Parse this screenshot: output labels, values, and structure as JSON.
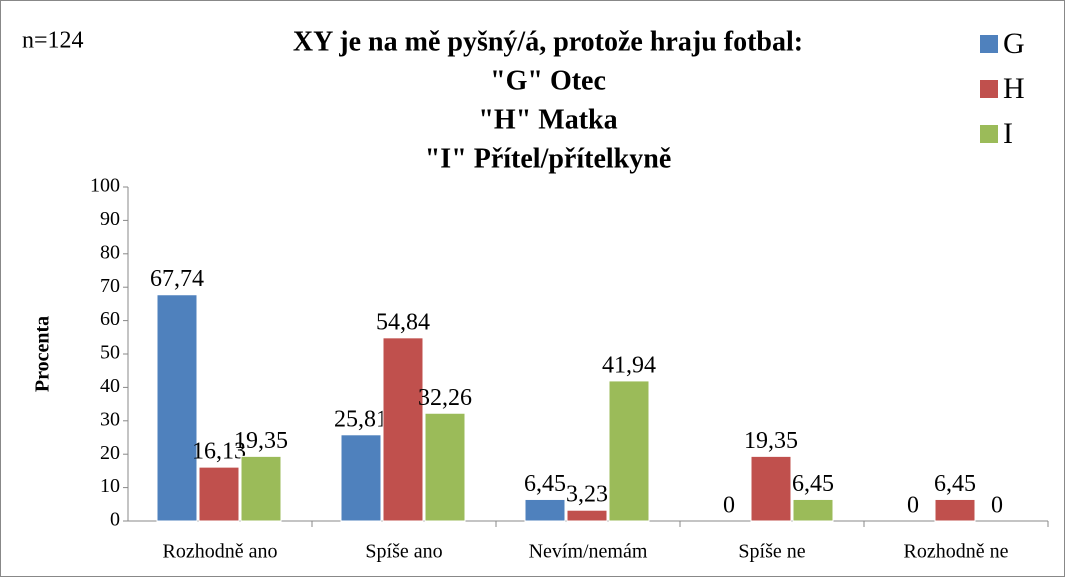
{
  "chart_data": {
    "type": "bar",
    "title": [
      "XY je na mě pyšný/á, protože hraju fotbal:",
      "\"G\" Otec",
      "\"H\" Matka",
      "\"I\" Přítel/přítelkyně"
    ],
    "annotation": "n=124",
    "y_label": "Procenta",
    "categories": [
      "Rozhodně ano",
      "Spíše ano",
      "Nevím/nemám",
      "Spíše ne",
      "Rozhodně ne"
    ],
    "series": [
      {
        "name": "G",
        "color": "#4f81bd",
        "values": [
          67.74,
          25.81,
          6.45,
          0,
          0
        ],
        "value_labels": [
          "67,74",
          "25,81",
          "6,45",
          "0",
          "0"
        ]
      },
      {
        "name": "H",
        "color": "#c0504d",
        "values": [
          16.13,
          54.84,
          3.23,
          19.35,
          6.45
        ],
        "value_labels": [
          "16,13",
          "54,84",
          "3,23",
          "19,35",
          "6,45"
        ]
      },
      {
        "name": "I",
        "color": "#9bbb59",
        "values": [
          19.35,
          32.26,
          41.94,
          6.45,
          0
        ],
        "value_labels": [
          "19,35",
          "32,26",
          "41,94",
          "6,45",
          "0"
        ]
      }
    ],
    "ylim": [
      0,
      100
    ],
    "yticks": [
      0,
      10,
      20,
      30,
      40,
      50,
      60,
      70,
      80,
      90,
      100
    ],
    "grid": false,
    "legend": "top-right"
  }
}
